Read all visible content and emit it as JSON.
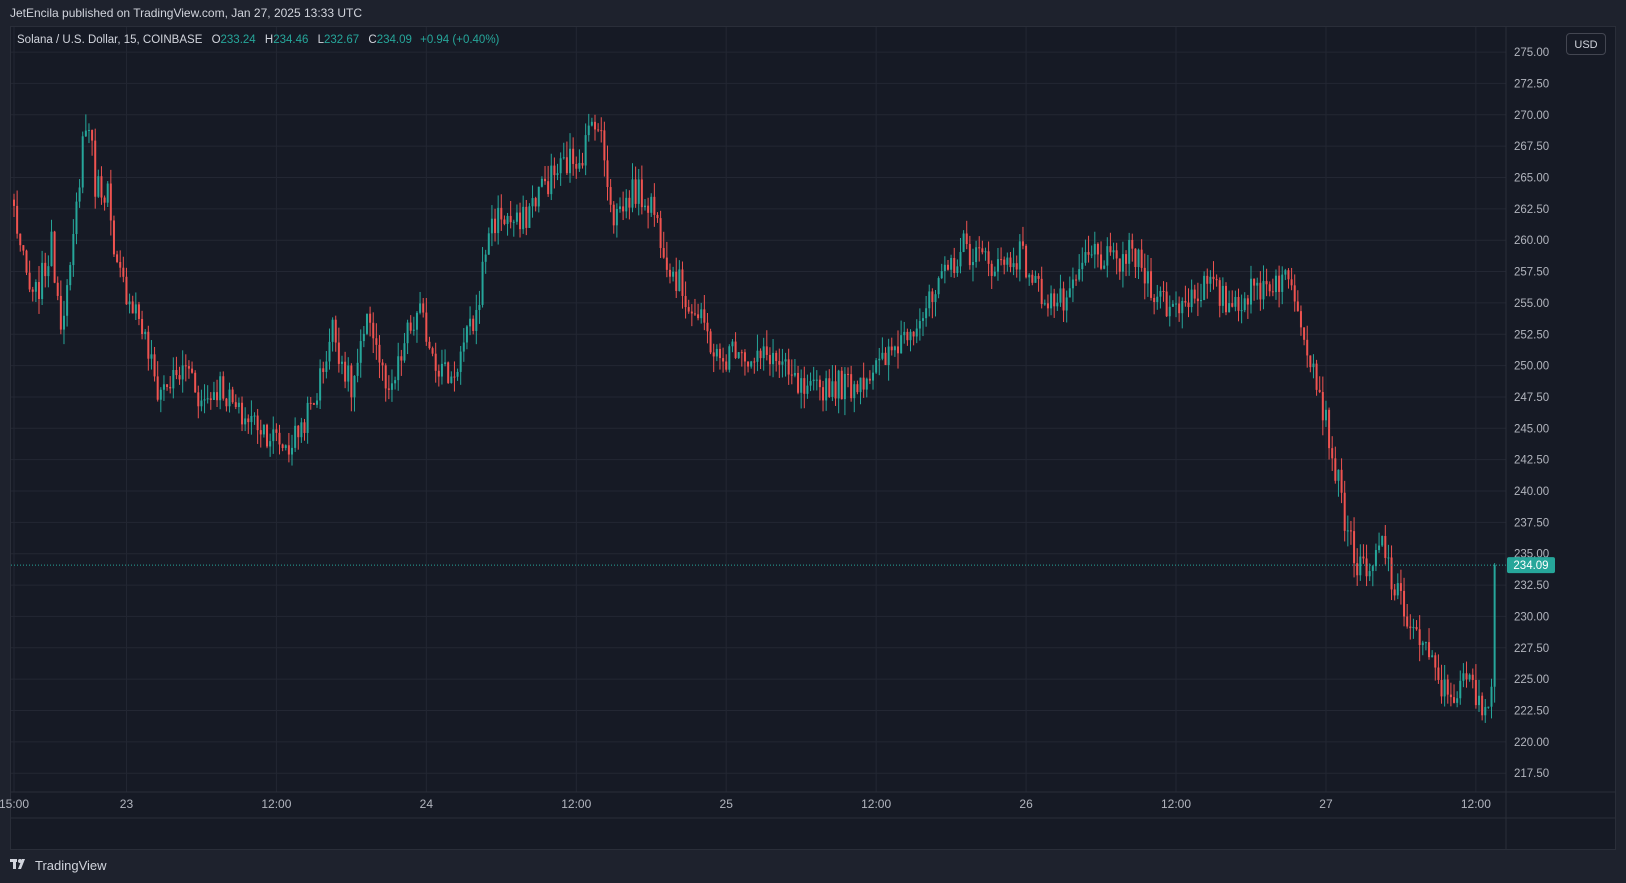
{
  "header": {
    "published": "JetEncila published on TradingView.com, Jan 27, 2025 13:33 UTC"
  },
  "legend": {
    "symbol": "Solana / U.S. Dollar, 15, COINBASE",
    "o_label": "O",
    "o": "233.24",
    "h_label": "H",
    "h": "234.46",
    "l_label": "L",
    "l": "232.67",
    "c_label": "C",
    "c": "234.09",
    "change": "+0.94 (+0.40%)"
  },
  "currency": "USD",
  "footer": {
    "brand": "TradingView"
  },
  "colors": {
    "up": "#26a69a",
    "down": "#ef5350",
    "grid": "#232733",
    "bg": "#161a25"
  },
  "chart_data": {
    "type": "candlestick",
    "interval": "15",
    "exchange": "COINBASE",
    "ylim": [
      216,
      277
    ],
    "last_price": 234.09,
    "y_ticks": [
      275,
      272.5,
      270,
      267.5,
      265,
      262.5,
      260,
      257.5,
      255,
      252.5,
      250,
      247.5,
      245,
      242.5,
      240,
      237.5,
      235,
      232.5,
      230,
      227.5,
      225,
      222.5,
      220,
      217.5
    ],
    "y_tick_labels": [
      "275.00",
      "272.50",
      "270.00",
      "267.50",
      "265.00",
      "262.50",
      "260.00",
      "257.50",
      "255.00",
      "252.50",
      "250.00",
      "247.50",
      "245.00",
      "242.50",
      "240.00",
      "237.50",
      "235.00",
      "232.50",
      "230.00",
      "227.50",
      "225.00",
      "222.50",
      "220.00",
      "217.50"
    ],
    "x_ticks": [
      "15:00",
      "23",
      "12:00",
      "24",
      "12:00",
      "25",
      "12:00",
      "26",
      "12:00",
      "27",
      "12:00"
    ],
    "x_tick_bars": [
      0,
      36,
      84,
      132,
      180,
      228,
      276,
      324,
      372,
      420,
      468
    ],
    "bar_count": 475,
    "price_path": [
      [
        0,
        262.5
      ],
      [
        3,
        258
      ],
      [
        6,
        255
      ],
      [
        9,
        257
      ],
      [
        12,
        259.5
      ],
      [
        15,
        254
      ],
      [
        18,
        257
      ],
      [
        22,
        268
      ],
      [
        24,
        269.5
      ],
      [
        26,
        264.5
      ],
      [
        30,
        264
      ],
      [
        32,
        258
      ],
      [
        38,
        255
      ],
      [
        40,
        254
      ],
      [
        42,
        252
      ],
      [
        46,
        248
      ],
      [
        52,
        249
      ],
      [
        56,
        250
      ],
      [
        60,
        247
      ],
      [
        66,
        248.5
      ],
      [
        72,
        246
      ],
      [
        78,
        245.5
      ],
      [
        84,
        244
      ],
      [
        88,
        243.5
      ],
      [
        96,
        247
      ],
      [
        102,
        253
      ],
      [
        108,
        248
      ],
      [
        114,
        254
      ],
      [
        120,
        247
      ],
      [
        126,
        252.5
      ],
      [
        130,
        254
      ],
      [
        136,
        250
      ],
      [
        140,
        249
      ],
      [
        148,
        254
      ],
      [
        152,
        261
      ],
      [
        156,
        262
      ],
      [
        162,
        261
      ],
      [
        168,
        264
      ],
      [
        176,
        266
      ],
      [
        182,
        267
      ],
      [
        186,
        270
      ],
      [
        188,
        268
      ],
      [
        192,
        262
      ],
      [
        196,
        263
      ],
      [
        198,
        264
      ],
      [
        204,
        263
      ],
      [
        210,
        258
      ],
      [
        216,
        255
      ],
      [
        222,
        252.5
      ],
      [
        226,
        250
      ],
      [
        232,
        252
      ],
      [
        236,
        250
      ],
      [
        242,
        251
      ],
      [
        248,
        249
      ],
      [
        254,
        247.5
      ],
      [
        260,
        248.5
      ],
      [
        268,
        248.5
      ],
      [
        274,
        249.5
      ],
      [
        278,
        250
      ],
      [
        286,
        253
      ],
      [
        294,
        255
      ],
      [
        300,
        258
      ],
      [
        304,
        259.5
      ],
      [
        310,
        258.5
      ],
      [
        316,
        258
      ],
      [
        322,
        259
      ],
      [
        328,
        256
      ],
      [
        334,
        255
      ],
      [
        338,
        255
      ],
      [
        342,
        258
      ],
      [
        346,
        259
      ],
      [
        352,
        258
      ],
      [
        358,
        259
      ],
      [
        364,
        256.5
      ],
      [
        370,
        254.5
      ],
      [
        376,
        255.5
      ],
      [
        382,
        256.5
      ],
      [
        388,
        255
      ],
      [
        394,
        255.5
      ],
      [
        400,
        256.5
      ],
      [
        406,
        257
      ],
      [
        410,
        256
      ],
      [
        414,
        252
      ],
      [
        418,
        248
      ],
      [
        422,
        243
      ],
      [
        426,
        238
      ],
      [
        430,
        234
      ],
      [
        434,
        233
      ],
      [
        438,
        236
      ],
      [
        442,
        232
      ],
      [
        446,
        230
      ],
      [
        450,
        228
      ],
      [
        454,
        226
      ],
      [
        458,
        224
      ],
      [
        462,
        224
      ],
      [
        466,
        225
      ],
      [
        470,
        222
      ],
      [
        474,
        226
      ],
      [
        476,
        228
      ],
      [
        478,
        232
      ],
      [
        481,
        234
      ]
    ]
  }
}
